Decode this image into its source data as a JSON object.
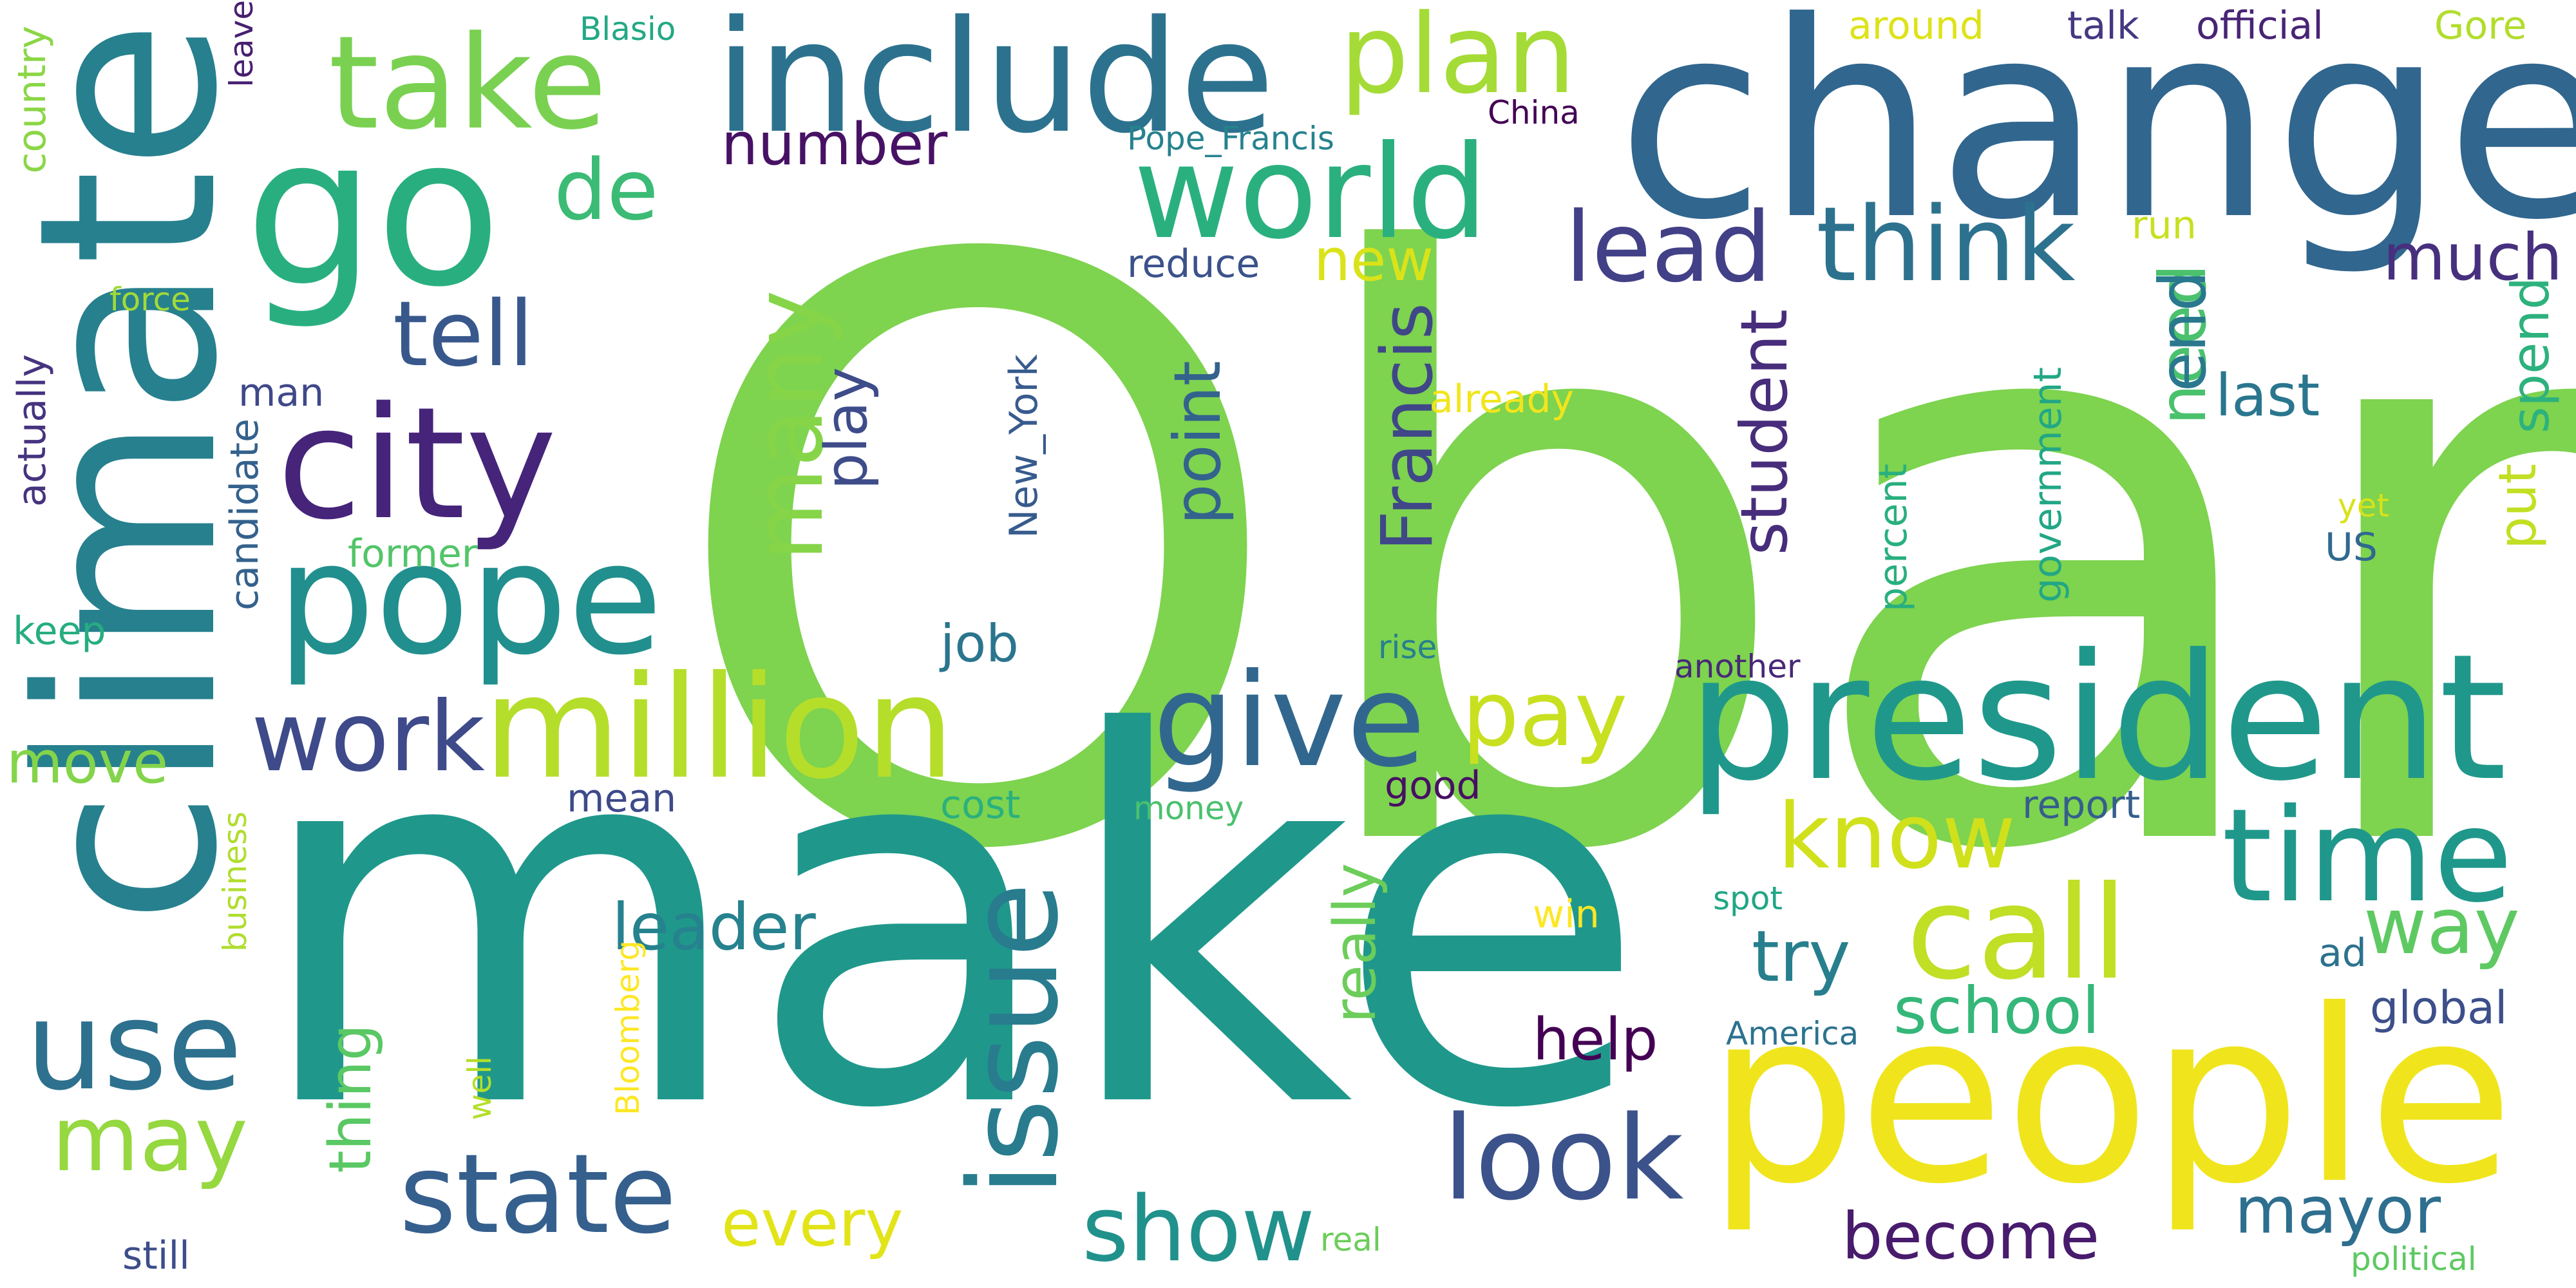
{
  "words": [
    {
      "text": "Obama",
      "color": "#7ed34f",
      "orientation": "horizontal"
    },
    {
      "text": "make",
      "color": "#1f988b",
      "orientation": "horizontal"
    },
    {
      "text": "change",
      "color": "#31668e",
      "orientation": "horizontal"
    },
    {
      "text": "climate",
      "color": "#27808e",
      "orientation": "vertical"
    },
    {
      "text": "people",
      "color": "#f0e51d",
      "orientation": "horizontal"
    },
    {
      "text": "president",
      "color": "#1f988b",
      "orientation": "horizontal"
    },
    {
      "text": "go",
      "color": "#29af7f",
      "orientation": "horizontal"
    },
    {
      "text": "include",
      "color": "#2c728e",
      "orientation": "horizontal"
    },
    {
      "text": "city",
      "color": "#46247a",
      "orientation": "horizontal"
    },
    {
      "text": "pope",
      "color": "#218f8d",
      "orientation": "horizontal"
    },
    {
      "text": "million",
      "color": "#b5de2b",
      "orientation": "horizontal"
    },
    {
      "text": "take",
      "color": "#7ad151",
      "orientation": "horizontal"
    },
    {
      "text": "issue",
      "color": "#287c8e",
      "orientation": "vertical"
    },
    {
      "text": "world",
      "color": "#2ab07f",
      "orientation": "horizontal"
    },
    {
      "text": "give",
      "color": "#31678e",
      "orientation": "horizontal"
    },
    {
      "text": "time",
      "color": "#1f988b",
      "orientation": "horizontal"
    },
    {
      "text": "call",
      "color": "#c0df25",
      "orientation": "horizontal"
    },
    {
      "text": "use",
      "color": "#2d718e",
      "orientation": "horizontal"
    },
    {
      "text": "state",
      "color": "#355f8d",
      "orientation": "horizontal"
    },
    {
      "text": "look",
      "color": "#3b528b",
      "orientation": "horizontal"
    },
    {
      "text": "plan",
      "color": "#a5db36",
      "orientation": "horizontal"
    },
    {
      "text": "think",
      "color": "#2c728e",
      "orientation": "horizontal"
    },
    {
      "text": "lead",
      "color": "#424086",
      "orientation": "horizontal"
    },
    {
      "text": "work",
      "color": "#3e4a89",
      "orientation": "horizontal"
    },
    {
      "text": "pay",
      "color": "#c8e020",
      "orientation": "horizontal"
    },
    {
      "text": "know",
      "color": "#d0e11c",
      "orientation": "horizontal"
    },
    {
      "text": "show",
      "color": "#21918c",
      "orientation": "horizontal"
    },
    {
      "text": "may",
      "color": "#95d840",
      "orientation": "horizontal"
    },
    {
      "text": "many",
      "color": "#86d549",
      "orientation": "vertical"
    },
    {
      "text": "tell",
      "color": "#38588c",
      "orientation": "horizontal"
    },
    {
      "text": "de",
      "color": "#3bbb75",
      "orientation": "horizontal"
    },
    {
      "text": "way",
      "color": "#5ec962",
      "orientation": "horizontal"
    },
    {
      "text": "mayor",
      "color": "#2e6e8e",
      "orientation": "horizontal"
    },
    {
      "text": "become",
      "color": "#481b6d",
      "orientation": "horizontal"
    },
    {
      "text": "school",
      "color": "#35b779",
      "orientation": "horizontal"
    },
    {
      "text": "every",
      "color": "#e2e418",
      "orientation": "horizontal"
    },
    {
      "text": "Francis",
      "color": "#3f4788",
      "orientation": "vertical"
    },
    {
      "text": "try",
      "color": "#277f8e",
      "orientation": "horizontal"
    },
    {
      "text": "much",
      "color": "#46307e",
      "orientation": "horizontal"
    },
    {
      "text": "student",
      "color": "#472d7b",
      "orientation": "vertical"
    },
    {
      "text": "point",
      "color": "#33638d",
      "orientation": "vertical"
    },
    {
      "text": "play",
      "color": "#3e4c8a",
      "orientation": "vertical"
    },
    {
      "text": "leader",
      "color": "#26828e",
      "orientation": "horizontal"
    },
    {
      "text": "help",
      "color": "#440154",
      "orientation": "horizontal"
    },
    {
      "text": "need",
      "color": "#4ac16d",
      "orientation": "vertical"
    },
    {
      "text": "end",
      "color": "#2a788e",
      "orientation": "vertical"
    },
    {
      "text": "last",
      "color": "#2a768e",
      "orientation": "horizontal"
    },
    {
      "text": "move",
      "color": "#84d44b",
      "orientation": "horizontal"
    },
    {
      "text": "really",
      "color": "#6ccd5a",
      "orientation": "vertical"
    },
    {
      "text": "new",
      "color": "#dae319",
      "orientation": "horizontal"
    },
    {
      "text": "number",
      "color": "#471164",
      "orientation": "horizontal"
    },
    {
      "text": "thing",
      "color": "#5ac864",
      "orientation": "vertical"
    },
    {
      "text": "put",
      "color": "#c2df23",
      "orientation": "vertical"
    },
    {
      "text": "spend",
      "color": "#2db27d",
      "orientation": "vertical"
    },
    {
      "text": "job",
      "color": "#2b758e",
      "orientation": "horizontal"
    },
    {
      "text": "global",
      "color": "#3c4f8a",
      "orientation": "horizontal"
    },
    {
      "text": "keep",
      "color": "#26ad81",
      "orientation": "horizontal"
    },
    {
      "text": "former",
      "color": "#52c569",
      "orientation": "horizontal"
    },
    {
      "text": "actually",
      "color": "#46337f",
      "orientation": "vertical"
    },
    {
      "text": "candidate",
      "color": "#34618d",
      "orientation": "vertical"
    },
    {
      "text": "New_York",
      "color": "#375b8d",
      "orientation": "vertical"
    },
    {
      "text": "government",
      "color": "#22a785",
      "orientation": "vertical"
    },
    {
      "text": "percent",
      "color": "#29af7f",
      "orientation": "vertical"
    },
    {
      "text": "man",
      "color": "#3f4889",
      "orientation": "horizontal"
    },
    {
      "text": "already",
      "color": "#f1e51d",
      "orientation": "horizontal"
    },
    {
      "text": "reduce",
      "color": "#3b528b",
      "orientation": "horizontal"
    },
    {
      "text": "good",
      "color": "#471063",
      "orientation": "horizontal"
    },
    {
      "text": "report",
      "color": "#355e8d",
      "orientation": "horizontal"
    },
    {
      "text": "cost",
      "color": "#2ab07f",
      "orientation": "horizontal"
    },
    {
      "text": "mean",
      "color": "#3e4a89",
      "orientation": "horizontal"
    },
    {
      "text": "ad",
      "color": "#2c728e",
      "orientation": "horizontal"
    },
    {
      "text": "US",
      "color": "#30698e",
      "orientation": "horizontal"
    },
    {
      "text": "win",
      "color": "#fde725",
      "orientation": "horizontal"
    },
    {
      "text": "around",
      "color": "#dde318",
      "orientation": "horizontal"
    },
    {
      "text": "talk",
      "color": "#453781",
      "orientation": "horizontal"
    },
    {
      "text": "official",
      "color": "#482475",
      "orientation": "horizontal"
    },
    {
      "text": "Gore",
      "color": "#b2dd2d",
      "orientation": "horizontal"
    },
    {
      "text": "run",
      "color": "#c8e020",
      "orientation": "horizontal"
    },
    {
      "text": "yet",
      "color": "#d8e219",
      "orientation": "horizontal"
    },
    {
      "text": "country",
      "color": "#8bd646",
      "orientation": "vertical"
    },
    {
      "text": "leave",
      "color": "#481f70",
      "orientation": "vertical"
    },
    {
      "text": "force",
      "color": "#a2da37",
      "orientation": "horizontal"
    },
    {
      "text": "business",
      "color": "#b0dd2f",
      "orientation": "vertical"
    },
    {
      "text": "well",
      "color": "#b5de2b",
      "orientation": "vertical"
    },
    {
      "text": "Bloomberg",
      "color": "#fde725",
      "orientation": "vertical"
    },
    {
      "text": "still",
      "color": "#3d4d8a",
      "orientation": "horizontal"
    },
    {
      "text": "real",
      "color": "#6ccd5a",
      "orientation": "horizontal"
    },
    {
      "text": "political",
      "color": "#5ec962",
      "orientation": "horizontal"
    },
    {
      "text": "America",
      "color": "#2c728e",
      "orientation": "horizontal"
    },
    {
      "text": "spot",
      "color": "#21a685",
      "orientation": "horizontal"
    },
    {
      "text": "money",
      "color": "#4ac16d",
      "orientation": "horizontal"
    },
    {
      "text": "another",
      "color": "#482878",
      "orientation": "horizontal"
    },
    {
      "text": "rise",
      "color": "#277f8e",
      "orientation": "horizontal"
    },
    {
      "text": "Blasio",
      "color": "#22a884",
      "orientation": "horizontal"
    },
    {
      "text": "Pope_Francis",
      "color": "#26828e",
      "orientation": "horizontal"
    },
    {
      "text": "China",
      "color": "#440154",
      "orientation": "horizontal"
    }
  ]
}
